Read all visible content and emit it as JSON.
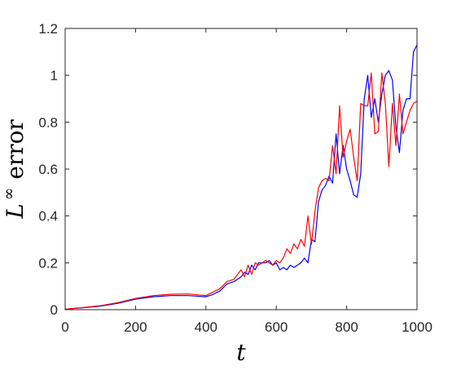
{
  "chart_data": {
    "type": "line",
    "title": "",
    "xlabel": "t",
    "ylabel": {
      "symbol": "L",
      "superscript": "∞",
      "word": "error"
    },
    "xlim": [
      0,
      1000
    ],
    "ylim": [
      0,
      1.2
    ],
    "xticks": [
      0,
      200,
      400,
      600,
      800,
      1000
    ],
    "xtick_labels": [
      "0",
      "200",
      "400",
      "600",
      "800",
      "1000"
    ],
    "yticks": [
      0,
      0.2,
      0.4,
      0.6,
      0.8,
      1.0,
      1.2
    ],
    "ytick_labels": [
      "0",
      "0.2",
      "0.4",
      "0.6",
      "0.8",
      "1",
      "1.2"
    ],
    "grid": false,
    "legend": false,
    "series": [
      {
        "color": "#0000ff",
        "x": [
          0,
          50,
          100,
          150,
          200,
          250,
          300,
          350,
          400,
          420,
          440,
          460,
          480,
          500,
          510,
          520,
          530,
          540,
          550,
          560,
          570,
          580,
          590,
          600,
          610,
          620,
          630,
          640,
          650,
          660,
          670,
          680,
          690,
          700,
          710,
          720,
          730,
          740,
          750,
          760,
          770,
          780,
          790,
          800,
          810,
          820,
          830,
          840,
          850,
          860,
          870,
          880,
          890,
          900,
          910,
          920,
          930,
          940,
          950,
          960,
          970,
          980,
          990,
          1000
        ],
        "y": [
          0.002,
          0.008,
          0.015,
          0.027,
          0.045,
          0.055,
          0.06,
          0.06,
          0.055,
          0.065,
          0.08,
          0.11,
          0.12,
          0.14,
          0.16,
          0.15,
          0.19,
          0.17,
          0.2,
          0.2,
          0.2,
          0.21,
          0.19,
          0.2,
          0.17,
          0.18,
          0.17,
          0.19,
          0.18,
          0.19,
          0.2,
          0.22,
          0.2,
          0.3,
          0.29,
          0.46,
          0.51,
          0.53,
          0.57,
          0.54,
          0.75,
          0.58,
          0.7,
          0.6,
          0.55,
          0.49,
          0.48,
          0.58,
          0.9,
          1.0,
          0.82,
          0.9,
          0.8,
          0.92,
          1.0,
          1.02,
          0.98,
          0.78,
          0.67,
          0.85,
          0.9,
          0.9,
          1.1,
          1.13
        ]
      },
      {
        "color": "#ff0000",
        "x": [
          0,
          50,
          100,
          150,
          200,
          250,
          300,
          350,
          400,
          420,
          440,
          460,
          480,
          500,
          510,
          520,
          530,
          540,
          550,
          560,
          570,
          580,
          590,
          600,
          610,
          620,
          630,
          640,
          650,
          660,
          670,
          680,
          690,
          700,
          710,
          720,
          730,
          740,
          750,
          760,
          770,
          780,
          790,
          800,
          810,
          820,
          830,
          840,
          850,
          860,
          870,
          880,
          890,
          900,
          910,
          920,
          930,
          940,
          950,
          960,
          970,
          980,
          990,
          1000
        ],
        "y": [
          0.002,
          0.009,
          0.017,
          0.03,
          0.048,
          0.06,
          0.066,
          0.067,
          0.06,
          0.075,
          0.09,
          0.12,
          0.13,
          0.17,
          0.14,
          0.19,
          0.15,
          0.2,
          0.19,
          0.2,
          0.21,
          0.2,
          0.19,
          0.21,
          0.2,
          0.22,
          0.26,
          0.24,
          0.28,
          0.26,
          0.3,
          0.27,
          0.4,
          0.28,
          0.42,
          0.52,
          0.55,
          0.56,
          0.55,
          0.7,
          0.58,
          0.87,
          0.65,
          0.72,
          0.77,
          0.65,
          0.55,
          0.88,
          0.87,
          0.87,
          1.01,
          0.75,
          0.76,
          1.01,
          0.88,
          0.61,
          0.88,
          0.7,
          0.92,
          0.75,
          0.8,
          0.85,
          0.88,
          0.89
        ]
      }
    ]
  }
}
